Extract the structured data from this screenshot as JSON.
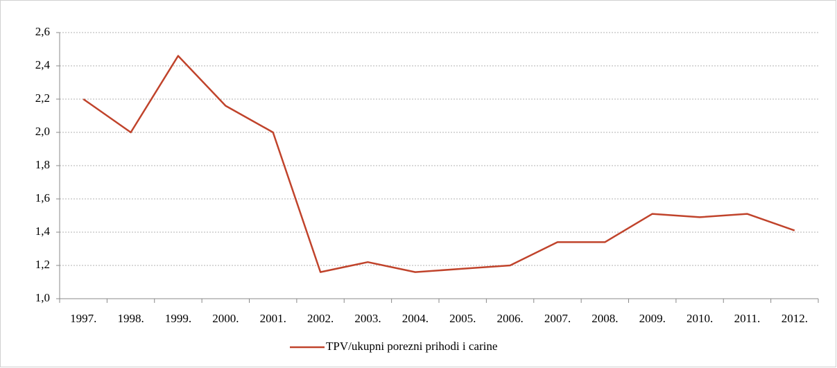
{
  "chart_data": {
    "type": "line",
    "categories": [
      "1997.",
      "1998.",
      "1999.",
      "2000.",
      "2001.",
      "2002.",
      "2003.",
      "2004.",
      "2005.",
      "2006.",
      "2007.",
      "2008.",
      "2009.",
      "2010.",
      "2011.",
      "2012."
    ],
    "series": [
      {
        "name": "TPV/ukupni porezni prihodi i carine",
        "color": "#c0432b",
        "values": [
          2.2,
          2.0,
          2.46,
          2.16,
          2.0,
          1.16,
          1.22,
          1.16,
          1.18,
          1.2,
          1.34,
          1.34,
          1.51,
          1.49,
          1.51,
          1.41
        ]
      }
    ],
    "ylim": [
      1.0,
      2.6
    ],
    "yticks": [
      {
        "value": 1.0,
        "label": "1,0"
      },
      {
        "value": 1.2,
        "label": "1,2"
      },
      {
        "value": 1.4,
        "label": "1,4"
      },
      {
        "value": 1.6,
        "label": "1,6"
      },
      {
        "value": 1.8,
        "label": "1,8"
      },
      {
        "value": 2.0,
        "label": "2,0"
      },
      {
        "value": 2.2,
        "label": "2,2"
      },
      {
        "value": 2.4,
        "label": "2,4"
      },
      {
        "value": 2.6,
        "label": "2,6"
      }
    ],
    "grid": true,
    "legend": "bottom"
  }
}
